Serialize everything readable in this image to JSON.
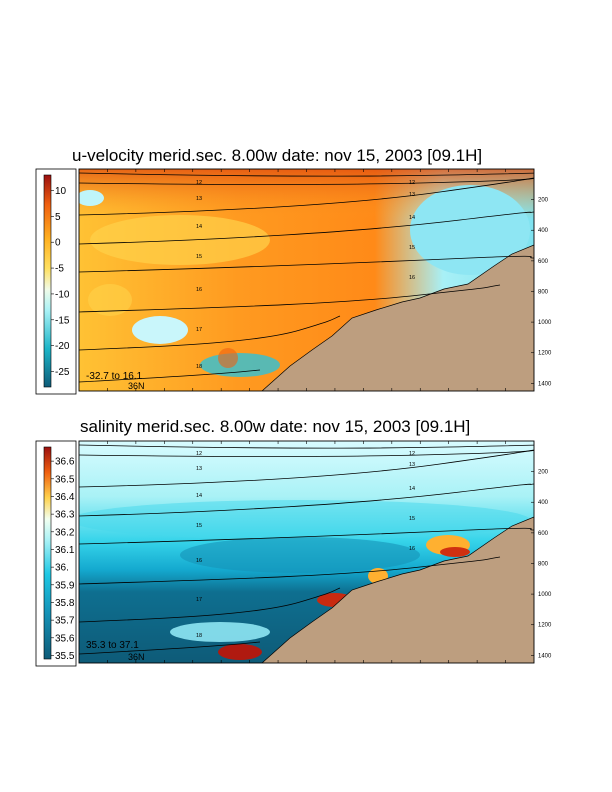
{
  "chart_data": [
    {
      "type": "heatmap",
      "title": "u-velocity merid.sec.  8.00w   date: nov 15, 2003   [09.1H]",
      "colorbar": {
        "ticks": [
          "10",
          "5",
          "0",
          "-5",
          "-10",
          "-15",
          "-20",
          "-25"
        ],
        "tick_values": [
          10,
          5,
          0,
          -5,
          -10,
          -15,
          -20,
          -25
        ],
        "range": [
          -28,
          13
        ]
      },
      "depth_ticks": [
        "200",
        "400",
        "600",
        "800",
        "1000",
        "1200",
        "1400"
      ],
      "depth_values": [
        200,
        400,
        600,
        800,
        1000,
        1200,
        1400
      ],
      "y_range": [
        0,
        1450
      ],
      "isotherm_labels": [
        {
          "text": "12",
          "value": 12
        },
        {
          "text": "13",
          "value": 13
        },
        {
          "text": "14",
          "value": 14
        },
        {
          "text": "15",
          "value": 15
        },
        {
          "text": "16",
          "value": 16
        },
        {
          "text": "17",
          "value": 17
        },
        {
          "text": "18",
          "value": 18
        },
        {
          "text": "12",
          "value": 12
        },
        {
          "text": "13",
          "value": 13
        },
        {
          "text": "14",
          "value": 14
        },
        {
          "text": "15",
          "value": 15
        },
        {
          "text": "16",
          "value": 16
        }
      ],
      "range_text": "-32.7 to  16.1",
      "latitude_label": "36N",
      "colors": {
        "land": "#bd9e7f"
      }
    },
    {
      "type": "heatmap",
      "title": "salinity merid.sec.  8.00w   date: nov 15, 2003   [09.1H]",
      "colorbar": {
        "ticks": [
          "36.6",
          "36.5",
          "36.4",
          "36.3",
          "36.2",
          "36.1",
          "36.",
          "35.9",
          "35.8",
          "35.7",
          "35.6",
          "35.5"
        ],
        "tick_values": [
          36.6,
          36.5,
          36.4,
          36.3,
          36.2,
          36.1,
          36.0,
          35.9,
          35.8,
          35.7,
          35.6,
          35.5
        ],
        "range": [
          35.48,
          36.68
        ]
      },
      "depth_ticks": [
        "200",
        "400",
        "600",
        "800",
        "1000",
        "1200",
        "1400"
      ],
      "depth_values": [
        200,
        400,
        600,
        800,
        1000,
        1200,
        1400
      ],
      "y_range": [
        0,
        1450
      ],
      "isotherm_labels": [
        {
          "text": "12",
          "value": 12
        },
        {
          "text": "13",
          "value": 13
        },
        {
          "text": "14",
          "value": 14
        },
        {
          "text": "15",
          "value": 15
        },
        {
          "text": "16",
          "value": 16
        },
        {
          "text": "17",
          "value": 17
        },
        {
          "text": "18",
          "value": 18
        },
        {
          "text": "12",
          "value": 12
        },
        {
          "text": "13",
          "value": 13
        },
        {
          "text": "14",
          "value": 14
        },
        {
          "text": "15",
          "value": 15
        },
        {
          "text": "16",
          "value": 16
        }
      ],
      "range_text": "35.3 to  37.1",
      "latitude_label": "36N",
      "colors": {
        "land": "#bd9e7f"
      }
    }
  ]
}
